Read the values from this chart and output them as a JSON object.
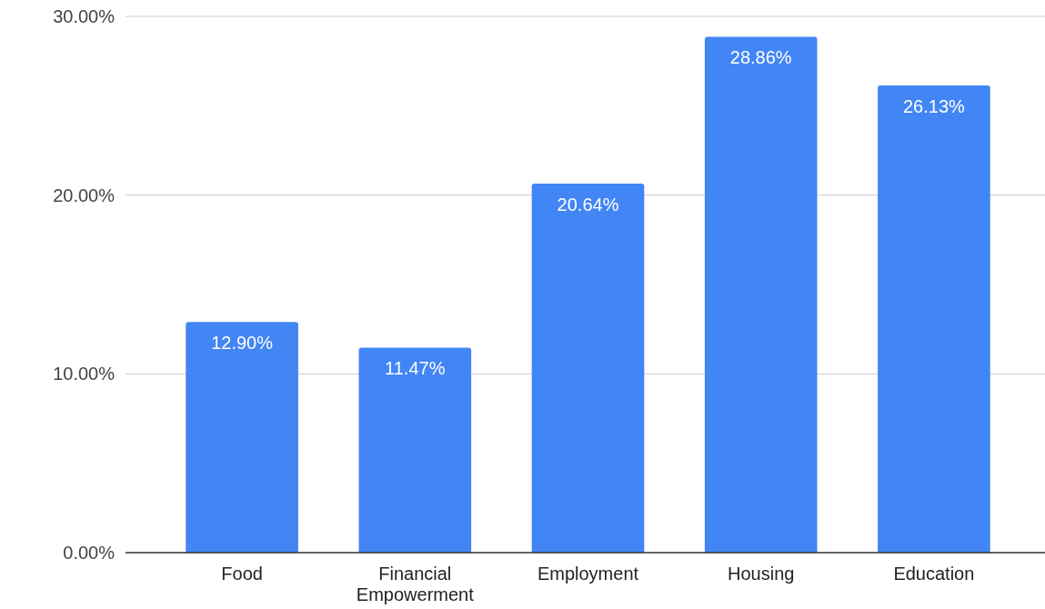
{
  "chart_data": {
    "type": "bar",
    "categories": [
      "Food",
      "Financial Empowerment",
      "Employment",
      "Housing",
      "Education"
    ],
    "values": [
      12.9,
      11.47,
      20.64,
      28.86,
      26.13
    ],
    "value_labels": [
      "12.90%",
      "11.47%",
      "20.64%",
      "28.86%",
      "26.13%"
    ],
    "color": "#4285f4",
    "ylim": [
      0,
      30
    ],
    "yticks": [
      {
        "value": 0,
        "label": "0.00%"
      },
      {
        "value": 10,
        "label": "10.00%"
      },
      {
        "value": 20,
        "label": "20.00%"
      },
      {
        "value": 30,
        "label": "30.00%"
      }
    ],
    "grid": "y"
  }
}
